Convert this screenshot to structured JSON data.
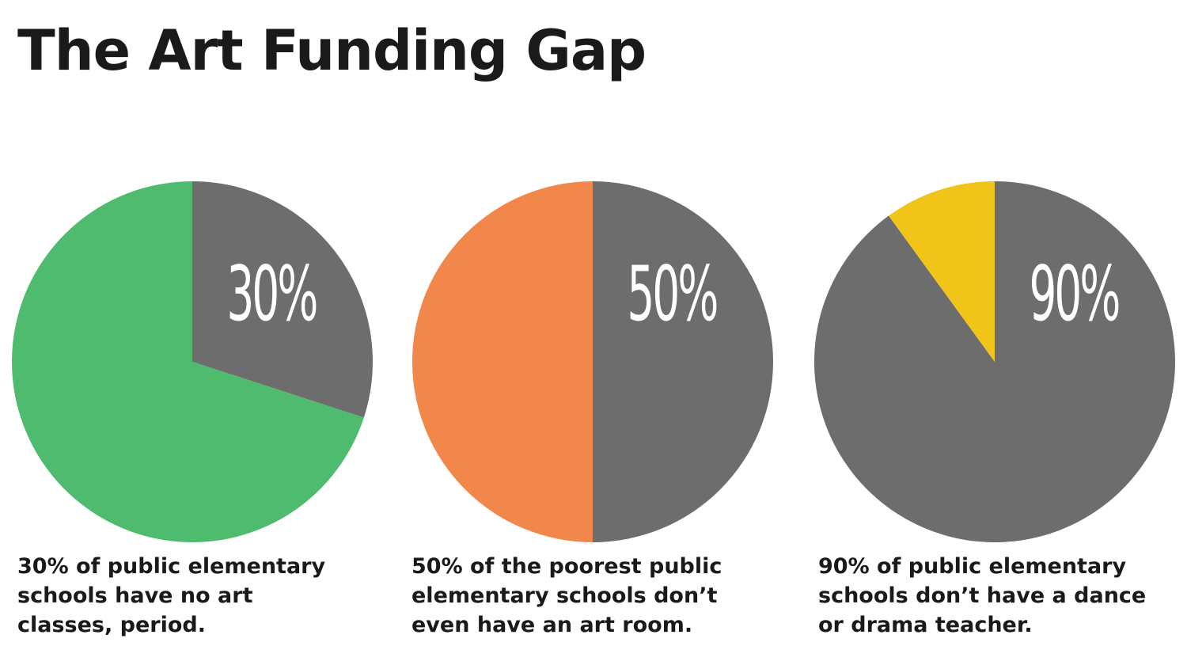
{
  "title": "The Art Funding Gap",
  "chart_data": [
    {
      "type": "pie",
      "label": "30%",
      "caption": "30% of public elementary\nschools have no art\nclasses, period.",
      "slices": [
        {
          "value": 30,
          "color": "#6d6d6d"
        },
        {
          "value": 70,
          "color": "#4fbb6e"
        }
      ]
    },
    {
      "type": "pie",
      "label": "50%",
      "caption": "50% of  the poorest public\nelementary schools don’t\neven have an art room.",
      "slices": [
        {
          "value": 50,
          "color": "#6d6d6d"
        },
        {
          "value": 50,
          "color": "#f2874b"
        }
      ]
    },
    {
      "type": "pie",
      "label": "90%",
      "caption": "90% of public elementary\nschools don’t have a dance\nor drama teacher.",
      "slices": [
        {
          "value": 90,
          "color": "#6d6d6d"
        },
        {
          "value": 10,
          "color": "#f0c419"
        }
      ]
    }
  ]
}
